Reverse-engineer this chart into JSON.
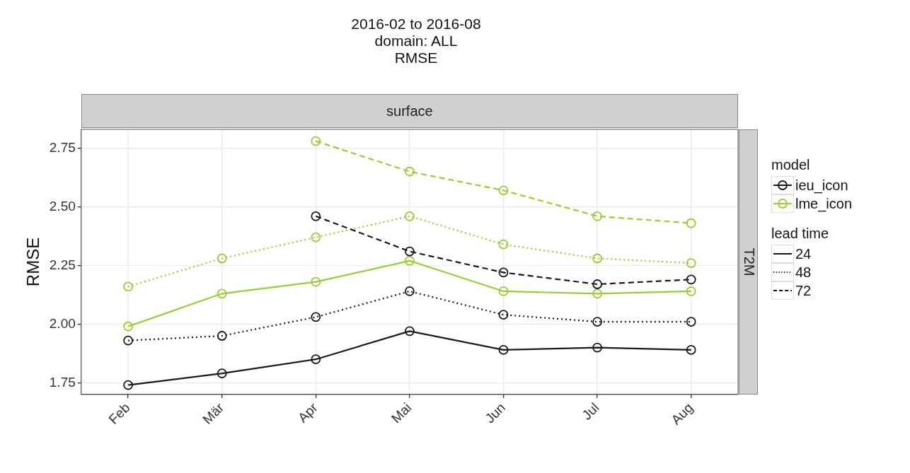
{
  "chart_data": {
    "type": "line",
    "title": "2016-02 to 2016-08\ndomain: ALL\nRMSE",
    "ylabel": "RMSE",
    "legend_title": "model",
    "categories": [
      "Feb",
      "Mär",
      "Apr",
      "Mai",
      "Jun",
      "Jul",
      "Aug"
    ],
    "series": [
      {
        "name": "ieu_icon",
        "color": "#1a1a1a",
        "line_style": "solid",
        "values": [
          1.74,
          1.79,
          1.85,
          1.97,
          1.89,
          1.9,
          1.89
        ]
      },
      {
        "color": "#1a1a1a",
        "line_style": "dotted",
        "values": [
          1.93,
          1.95,
          2.03,
          2.14,
          2.04,
          2.01,
          2.01
        ]
      },
      {
        "color": "#1a1a1a",
        "line_style": "dashed",
        "values": [
          null,
          null,
          2.46,
          2.31,
          2.22,
          2.17,
          2.19
        ]
      },
      {
        "name": "lme_icon",
        "color": "#9acd32",
        "line_style": "solid",
        "values": [
          1.99,
          2.13,
          2.18,
          2.27,
          2.14,
          2.13,
          2.14
        ]
      },
      {
        "color": "#9acd32",
        "line_style": "dotted",
        "values": [
          2.16,
          2.28,
          2.37,
          2.46,
          2.34,
          2.28,
          2.26
        ]
      },
      {
        "color": "#9acd32",
        "line_style": "dashed",
        "values": [
          null,
          null,
          2.78,
          2.65,
          2.57,
          2.46,
          2.43
        ]
      }
    ],
    "ylim": [
      1.7,
      2.83
    ],
    "yticks": [
      {
        "value": 1.75,
        "label": "1.75"
      },
      {
        "value": 2.0,
        "label": "2.00"
      },
      {
        "value": 2.25,
        "label": "2.25"
      },
      {
        "value": 2.5,
        "label": "2.50"
      },
      {
        "value": 2.75,
        "label": "2.75"
      }
    ],
    "grid": true,
    "legend": "right",
    "marker": "circle",
    "annotations": [
      "surface",
      "T2M",
      "lead time",
      "24",
      "48",
      "72"
    ]
  }
}
